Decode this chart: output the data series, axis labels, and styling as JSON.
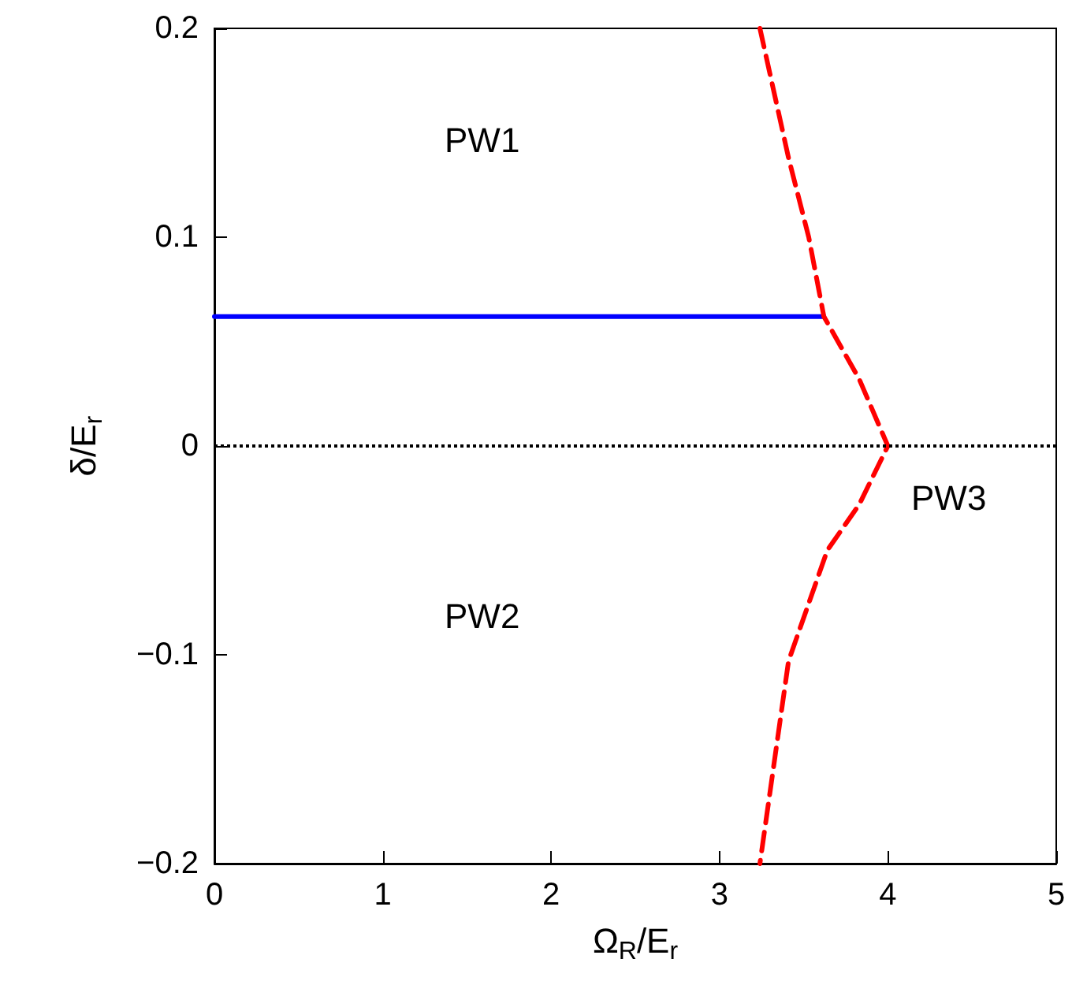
{
  "chart_data": {
    "type": "line",
    "xlabel": "Ω$_{R}$/E$_{r}$",
    "ylabel": "δ/E$_{r}$",
    "xlim": [
      0,
      5
    ],
    "xticks": [
      0,
      1,
      2,
      3,
      4,
      5
    ],
    "ylim": [
      -0.2,
      0.2
    ],
    "yticks": [
      -0.2,
      -0.1,
      0,
      0.1,
      0.2
    ],
    "grid": false,
    "marker": "none",
    "series": [
      {
        "color": "#0000ff",
        "line_style": "solid",
        "x": [
          0,
          3.62
        ],
        "values": [
          0.062,
          0.062
        ]
      },
      {
        "color": "#ff0000",
        "line_style": "dashed",
        "x": [
          3.24,
          3.41,
          3.53,
          3.62,
          3.83,
          4.0,
          3.83,
          3.64,
          3.41,
          3.24
        ],
        "values": [
          0.2,
          0.138,
          0.1,
          0.062,
          0.032,
          0,
          -0.028,
          -0.05,
          -0.103,
          -0.2
        ]
      }
    ],
    "ref_lines": [
      {
        "axis": "y",
        "value": 0,
        "color": "#000000",
        "line_style": "dotted"
      }
    ],
    "annotations": [
      "PW1",
      "PW2",
      "PW3"
    ]
  }
}
